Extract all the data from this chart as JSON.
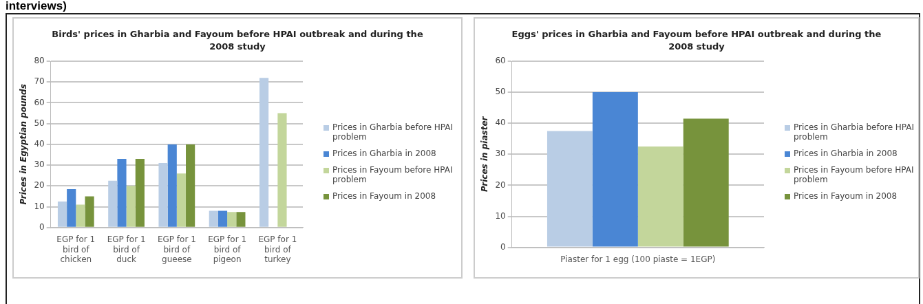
{
  "chart_data": [
    {
      "type": "bar",
      "title": "Birds' prices in Gharbia and Fayoum before HPAI outbreak and during the 2008 study",
      "ylabel": "Prices in Egyptian pounds",
      "annotations": [
        "interviews)"
      ],
      "categories": [
        "EGP for 1 bird of chicken",
        "EGP for 1 bird of duck",
        "EGP for 1 bird of gueese",
        "EGP for 1 bird of pigeon",
        "EGP for 1 bird of turkey"
      ],
      "series": [
        {
          "name": "Prices in Gharbia before HPAI problem",
          "color": "#b9cde5",
          "values": [
            12.5,
            22.5,
            31,
            8,
            72
          ]
        },
        {
          "name": "Prices in Gharbia in 2008",
          "color": "#4a86d4",
          "values": [
            18.5,
            33,
            40,
            8,
            null
          ]
        },
        {
          "name": "Prices in Fayoum before HPAI problem",
          "color": "#c3d69b",
          "values": [
            11,
            20,
            26,
            7.5,
            55
          ]
        },
        {
          "name": "Prices in Fayoum in 2008",
          "color": "#77933c",
          "values": [
            15,
            33,
            40,
            7.5,
            null
          ]
        }
      ],
      "ylim": [
        0,
        80
      ],
      "yticks": [
        0,
        10,
        20,
        30,
        40,
        50,
        60,
        70,
        80
      ],
      "grid": "y",
      "legend": "right"
    },
    {
      "type": "bar",
      "title": "Eggs' prices in Gharbia and Fayoum before HPAI outbreak and during the 2008 study",
      "ylabel": "Prices in piaster",
      "categories": [
        "Piaster for 1 egg (100 piaste = 1EGP)"
      ],
      "series": [
        {
          "name": "Prices in Gharbia before HPAI problem",
          "color": "#b9cde5",
          "values": [
            37.5
          ]
        },
        {
          "name": "Prices in Gharbia in 2008",
          "color": "#4a86d4",
          "values": [
            50
          ]
        },
        {
          "name": "Prices in Fayoum before HPAI problem",
          "color": "#c3d69b",
          "values": [
            32.5
          ]
        },
        {
          "name": "Prices in Fayoum in 2008",
          "color": "#77933c",
          "values": [
            41.5
          ]
        }
      ],
      "ylim": [
        0,
        60
      ],
      "yticks": [
        0,
        10,
        20,
        30,
        40,
        50,
        60
      ],
      "grid": "y",
      "legend": "right"
    }
  ]
}
